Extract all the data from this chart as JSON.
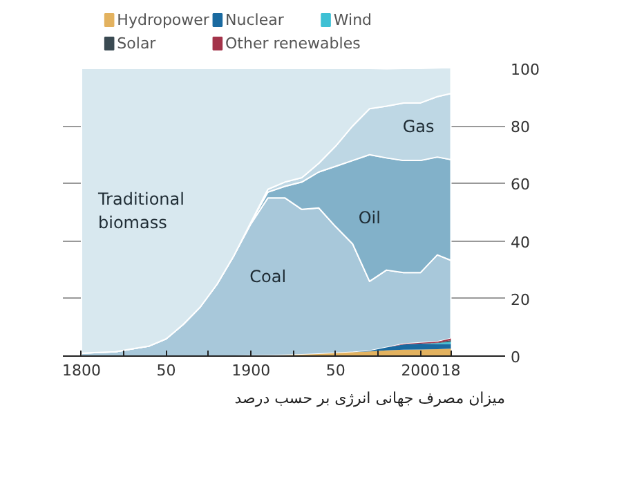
{
  "chart_data": {
    "type": "area",
    "stacked": true,
    "x": [
      1800,
      1820,
      1830,
      1840,
      1850,
      1860,
      1870,
      1880,
      1890,
      1900,
      1910,
      1920,
      1930,
      1940,
      1950,
      1960,
      1970,
      1980,
      1990,
      2000,
      2010,
      2018
    ],
    "series": [
      {
        "name": "Hydropower",
        "color": "#e3b25f",
        "values": [
          0,
          0,
          0,
          0,
          0,
          0,
          0,
          0,
          0,
          0.1,
          0.2,
          0.3,
          0.5,
          0.7,
          1,
          1.3,
          1.6,
          2,
          2.2,
          2.3,
          2.4,
          2.6
        ]
      },
      {
        "name": "Nuclear",
        "color": "#1a6aa0",
        "values": [
          0,
          0,
          0,
          0,
          0,
          0,
          0,
          0,
          0,
          0,
          0,
          0,
          0,
          0,
          0,
          0,
          0.2,
          1,
          1.8,
          2,
          1.8,
          1.6
        ]
      },
      {
        "name": "Wind",
        "color": "#3ec0d4",
        "values": [
          0,
          0,
          0,
          0,
          0,
          0,
          0,
          0,
          0,
          0,
          0,
          0,
          0,
          0,
          0,
          0,
          0,
          null,
          null,
          null,
          0.3,
          0.8
        ]
      },
      {
        "name": "Solar",
        "color": "#3a4a52",
        "values": [
          0,
          0,
          0,
          0,
          0,
          0,
          0,
          0,
          0,
          0,
          0,
          0,
          0,
          0,
          0,
          0,
          0,
          0,
          0,
          0,
          0.1,
          0.5
        ]
      },
      {
        "name": "Other renewables",
        "color": "#a3334a",
        "values": [
          0,
          0,
          0,
          0,
          0,
          0,
          0,
          0,
          0,
          0,
          0,
          0,
          0,
          0,
          0,
          0,
          0,
          0,
          0.2,
          0.3,
          0.4,
          0.6
        ]
      },
      {
        "name": "Coal",
        "color": "#a8c8da",
        "values": [
          1,
          1.5,
          2.5,
          3.5,
          6,
          11,
          17,
          25,
          35,
          45.9,
          54.8,
          54.7,
          50.5,
          50.8,
          44,
          37.7,
          24.2,
          26.9,
          24.8,
          24.4,
          30.2,
          27.2
        ]
      },
      {
        "name": "Oil",
        "color": "#82b1c9",
        "values": [
          0,
          0,
          0,
          0,
          0,
          0,
          0,
          0,
          0,
          0.5,
          2,
          4,
          9.5,
          12.5,
          21,
          29,
          44,
          39,
          39,
          39,
          34,
          35
        ]
      },
      {
        "name": "Gas",
        "color": "#bed7e4",
        "values": [
          0,
          0,
          0,
          0,
          0,
          0,
          0,
          0,
          0,
          0.1,
          1,
          1.5,
          1.5,
          3,
          7,
          12,
          16,
          18,
          20,
          20,
          21,
          23
        ]
      },
      {
        "name": "Traditional biomass",
        "color": "#d8e8ef",
        "values": [
          99,
          98.5,
          97.5,
          96.5,
          94,
          89,
          83,
          75,
          65,
          53.4,
          42,
          39.5,
          38,
          33,
          27,
          20,
          14,
          13,
          12,
          12,
          10,
          9
        ]
      }
    ],
    "xlim": [
      1789,
      2050
    ],
    "xticks": [
      1800,
      {
        "value": 1825,
        "label": null
      },
      {
        "value": 1850,
        "label": "50"
      },
      {
        "value": 1875,
        "label": null
      },
      1900,
      {
        "value": 1925,
        "label": null
      },
      {
        "value": 1950,
        "label": "50"
      },
      {
        "value": 1975,
        "label": null
      },
      2000,
      {
        "value": 2018,
        "label": "18"
      }
    ],
    "ylim": [
      0,
      100
    ],
    "yticks": [
      0,
      20,
      40,
      60,
      80,
      100
    ],
    "grid": "y",
    "legend": "top left",
    "annotations": [
      "میزان مصرف جهانی انرژی بر حسب درصد"
    ]
  }
}
